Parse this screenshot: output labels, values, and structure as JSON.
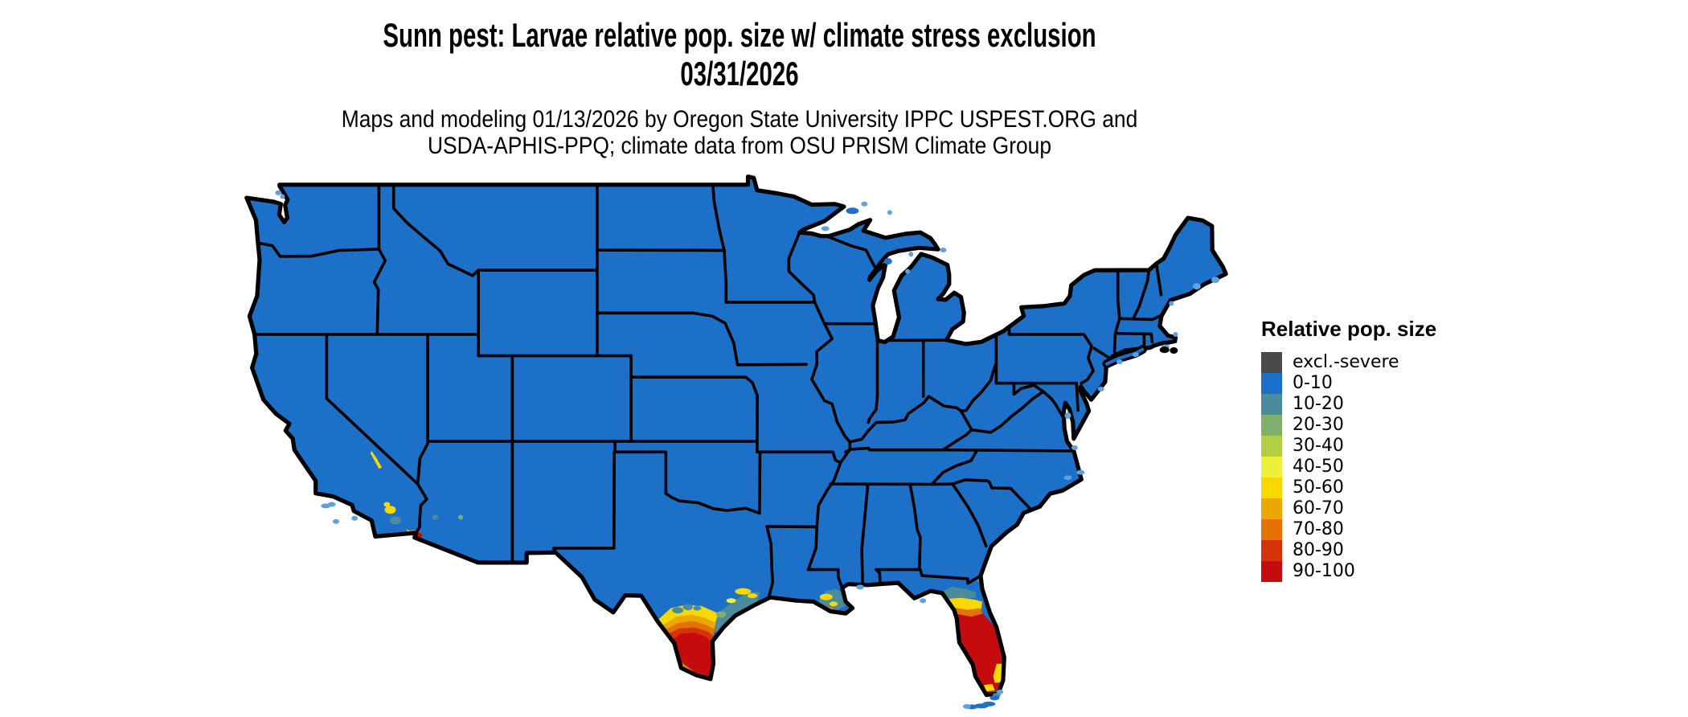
{
  "figure": {
    "title_line1": "Sunn pest: Larvae relative pop. size w/ climate stress exclusion",
    "title_line2": "03/31/2026",
    "subtitle_line1": "Maps and modeling 01/13/2026 by Oregon State University IPPC USPEST.ORG and",
    "subtitle_line2": "USDA-APHIS-PPQ; climate data from OSU PRISM Climate Group"
  },
  "legend": {
    "title": "Relative pop. size",
    "items": [
      {
        "label": "excl.-severe",
        "color": "#4a4a4a"
      },
      {
        "label": "0-10",
        "color": "#1d70c8"
      },
      {
        "label": "10-20",
        "color": "#4b8c9c"
      },
      {
        "label": "20-30",
        "color": "#7fb06c"
      },
      {
        "label": "30-40",
        "color": "#b2cf44"
      },
      {
        "label": "40-50",
        "color": "#eef13c"
      },
      {
        "label": "50-60",
        "color": "#f9d800"
      },
      {
        "label": "60-70",
        "color": "#eaa800"
      },
      {
        "label": "70-80",
        "color": "#e47205"
      },
      {
        "label": "80-90",
        "color": "#d5330a"
      },
      {
        "label": "90-100",
        "color": "#c40b0e"
      }
    ]
  },
  "map": {
    "region": "Conterminous United States with state boundaries",
    "base_class": "0-10",
    "border_color": "#000000",
    "water_fringe_color": "#5ea0e0",
    "hotspots": [
      {
        "area": "South Texas / Rio Grande Valley",
        "classes": "50-60 up to 90-100"
      },
      {
        "area": "Florida peninsula",
        "classes": "10-20 up to 90-100"
      },
      {
        "area": "Texas Gulf Coast near Houston",
        "classes": "10-20 to 50-60"
      },
      {
        "area": "Louisiana Mississippi delta",
        "classes": "10-20 to 70-80"
      },
      {
        "area": "Lower Colorado River / Yuma area",
        "classes": "50-60 up to 90-100"
      },
      {
        "area": "California desert valleys (Death Valley, Salton)",
        "classes": "10-20 to 50-60"
      },
      {
        "area": "Northeast Florida coast (Jacksonville)",
        "classes": "10-20 to 50-60"
      }
    ]
  }
}
